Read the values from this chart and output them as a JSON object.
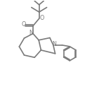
{
  "bg_color": "#ffffff",
  "line_color": "#7a7a7a",
  "text_color": "#7a7a7a",
  "bond_width": 1.2,
  "figsize": [
    1.31,
    1.43
  ],
  "dpi": 100,
  "xlim": [
    0,
    10
  ],
  "ylim": [
    0,
    13
  ]
}
